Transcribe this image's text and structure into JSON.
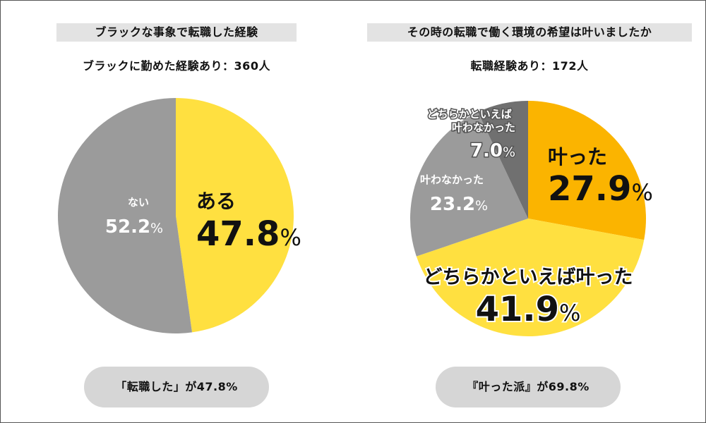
{
  "chart_data": [
    {
      "type": "pie",
      "title": "ブラックな事象で転職した経験",
      "subtitle": "ブラックに勤めた経験あり：360人",
      "slices": [
        {
          "label": "ある",
          "value": 47.8,
          "color": "#ffe040"
        },
        {
          "label": "ない",
          "value": 52.2,
          "color": "#9b9b9b"
        }
      ],
      "value_texts": [
        "47.8",
        "52.2"
      ],
      "summary": "「転職した」が47.8%"
    },
    {
      "type": "pie",
      "title": "その時の転職で働く環境の希望は叶いましたか",
      "subtitle": "転職経験あり：172人",
      "slices": [
        {
          "label": "叶った",
          "value": 27.9,
          "color": "#fbb400"
        },
        {
          "label": "どちらかといえば叶った",
          "value": 41.9,
          "color": "#ffe040"
        },
        {
          "label": "叶わなかった",
          "value": 23.2,
          "color": "#9b9b9b"
        },
        {
          "label": "どちらかといえば\n叶わなかった",
          "value": 7.0,
          "color": "#707070"
        }
      ],
      "value_texts": [
        "27.9",
        "41.9",
        "23.2",
        "7.0"
      ],
      "summary": "『叶った派』が69.8%"
    }
  ],
  "percent_sign": "%"
}
